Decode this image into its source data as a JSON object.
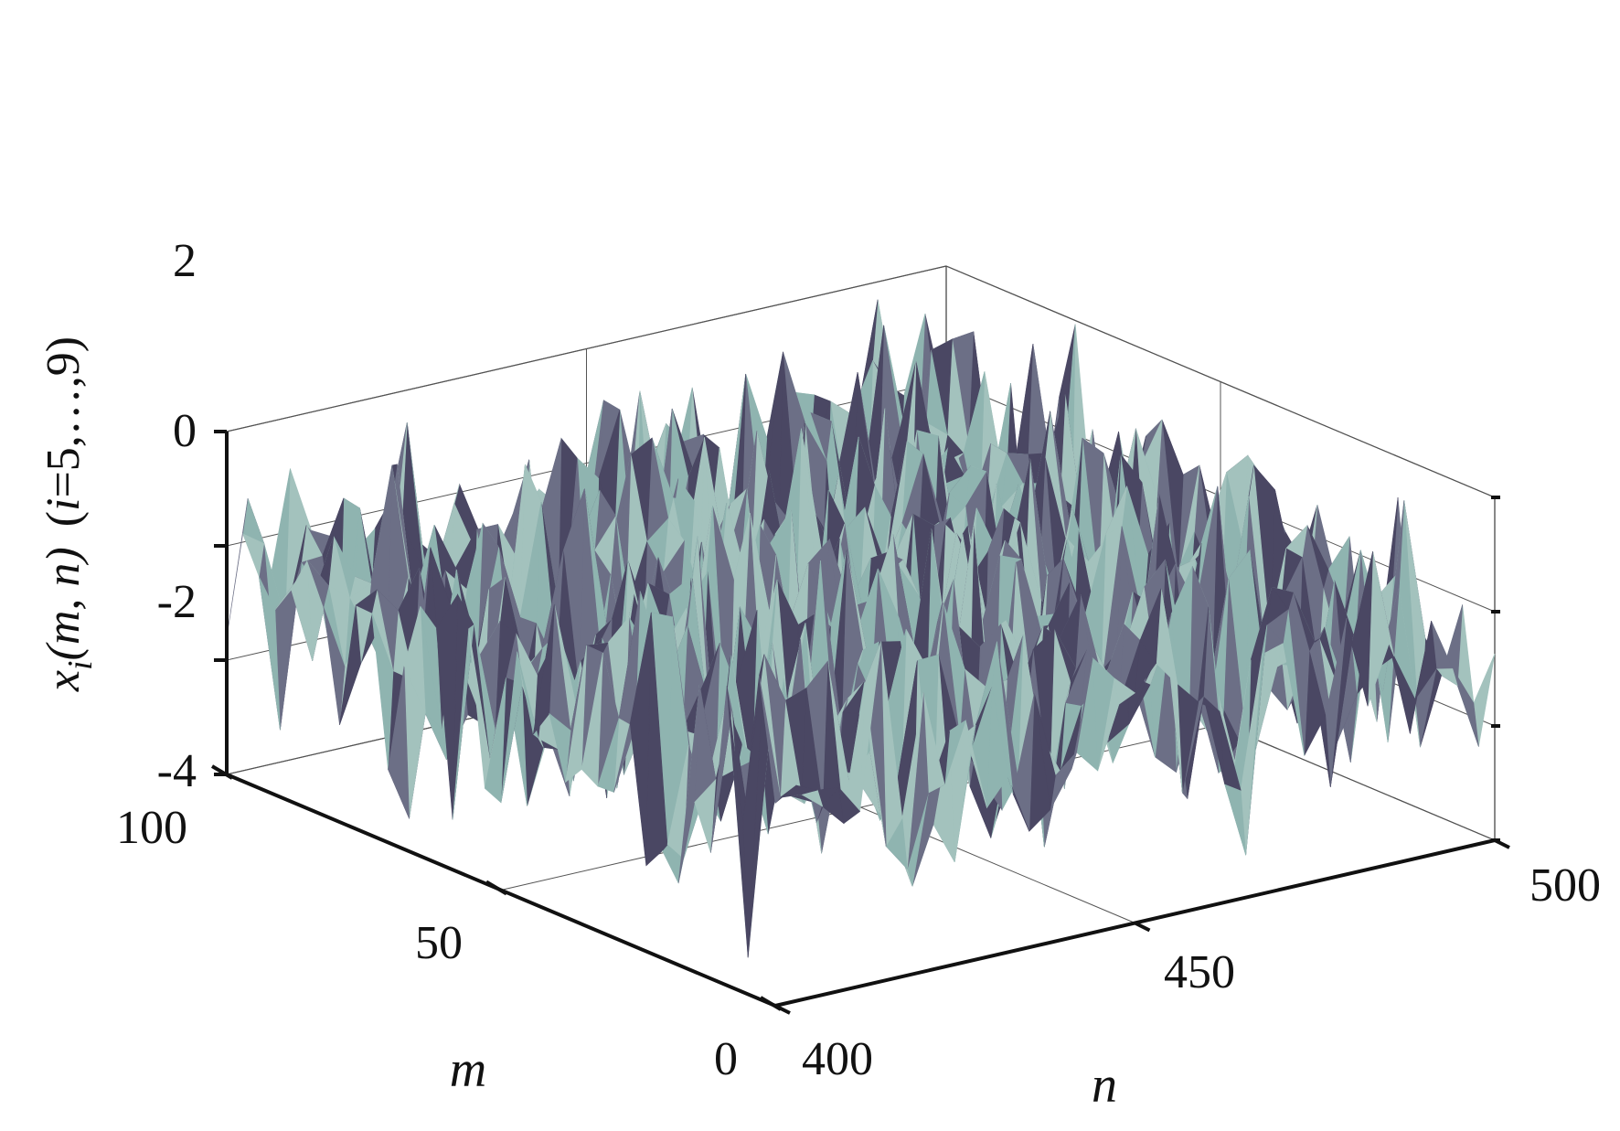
{
  "chart_data": {
    "type": "surface",
    "view": "3d",
    "zlabel_parts": {
      "x": "x",
      "i": "i",
      "args": "(m, n)",
      "range_i": "i",
      "range_rest": "=5,…,9)",
      "range_open": "("
    },
    "xlabel": "m",
    "ylabel": "n",
    "m_axis": {
      "ticks": [
        "0",
        "50",
        "100"
      ],
      "values": [
        0,
        50,
        100
      ],
      "range": [
        0,
        100
      ]
    },
    "n_axis": {
      "ticks": [
        "400",
        "450",
        "500"
      ],
      "values": [
        400,
        450,
        500
      ],
      "range": [
        400,
        500
      ]
    },
    "z_axis": {
      "ticks": [
        "-4",
        "-2",
        "0",
        "2"
      ],
      "values": [
        -4,
        -2,
        0,
        2
      ],
      "range": [
        -4,
        2
      ]
    },
    "surface": {
      "description_values": "random-like fluctuations between about -4 and 2, centred near -0.6",
      "z_min": -4,
      "z_max": 2,
      "colors": [
        "#4a4763",
        "#8fb4b0",
        "#6c6f86",
        "#a3c2bd"
      ]
    },
    "grid": true
  }
}
